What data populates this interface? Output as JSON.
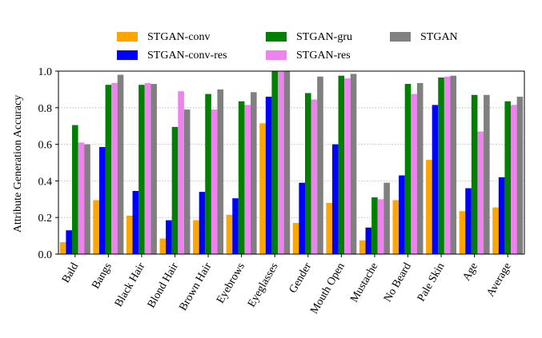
{
  "chart_data": {
    "type": "bar",
    "ylabel": "Attribute Generation Accuracy",
    "xlabel": "",
    "ylim": [
      0,
      1.0
    ],
    "yticks": [
      0.0,
      0.2,
      0.4,
      0.6,
      0.8,
      1.0
    ],
    "ytick_labels": [
      "0.0",
      "0.2",
      "0.4",
      "0.6",
      "0.8",
      "1.0"
    ],
    "grid": "horizontal dotted",
    "legend_position": "top, above plot",
    "categories": [
      "Bald",
      "Bangs",
      "Black Hair",
      "Blond Hair",
      "Brown Hair",
      "Eyebrows",
      "Eyeglasses",
      "Gender",
      "Mouth Open",
      "Mustache",
      "No Beard",
      "Pale Skin",
      "Age",
      "Average"
    ],
    "series": [
      {
        "name": "STGAN-conv",
        "color": "#ffa500",
        "values": [
          0.065,
          0.295,
          0.21,
          0.085,
          0.185,
          0.215,
          0.715,
          0.17,
          0.28,
          0.075,
          0.295,
          0.515,
          0.235,
          0.255
        ]
      },
      {
        "name": "STGAN-conv-res",
        "color": "#0000ff",
        "values": [
          0.13,
          0.585,
          0.345,
          0.185,
          0.34,
          0.305,
          0.86,
          0.39,
          0.6,
          0.145,
          0.43,
          0.815,
          0.36,
          0.42
        ]
      },
      {
        "name": "STGAN-gru",
        "color": "#008000",
        "values": [
          0.705,
          0.925,
          0.925,
          0.695,
          0.875,
          0.835,
          1.0,
          0.88,
          0.975,
          0.31,
          0.93,
          0.965,
          0.87,
          0.835
        ]
      },
      {
        "name": "STGAN-res",
        "color": "#ee82ee",
        "values": [
          0.61,
          0.935,
          0.935,
          0.89,
          0.79,
          0.815,
          1.0,
          0.845,
          0.96,
          0.3,
          0.875,
          0.97,
          0.67,
          0.815
        ]
      },
      {
        "name": "STGAN",
        "color": "#808080",
        "values": [
          0.6,
          0.98,
          0.93,
          0.79,
          0.9,
          0.885,
          1.0,
          0.97,
          0.985,
          0.39,
          0.935,
          0.975,
          0.87,
          0.86
        ]
      }
    ],
    "legend_order": [
      0,
      2,
      4,
      1,
      3
    ]
  }
}
